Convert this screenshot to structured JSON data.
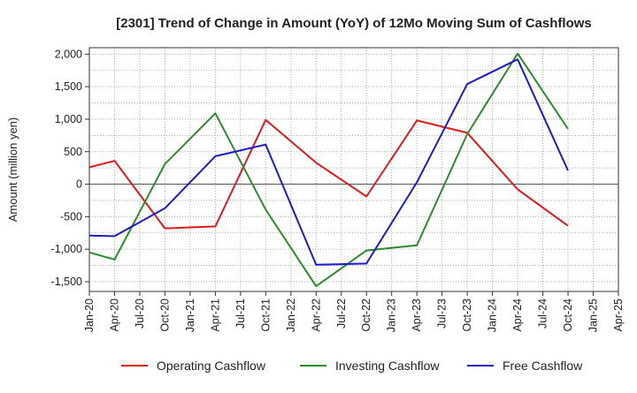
{
  "chart_data": {
    "type": "line",
    "title": "[2301]  Trend of Change in Amount (YoY) of 12Mo Moving Sum of Cashflows",
    "xlabel": "",
    "ylabel": "Amount (million yen)",
    "ylim": [
      -1650,
      2100
    ],
    "yticks": [
      2000,
      1500,
      1000,
      500,
      0,
      -500,
      -1000,
      -1500
    ],
    "ytick_labels": [
      "2,000",
      "1,500",
      "1,000",
      "500",
      "0",
      "-500",
      "-1,000",
      "-1,500"
    ],
    "categories": [
      "Jan-20",
      "Apr-20",
      "Jul-20",
      "Oct-20",
      "Jan-21",
      "Apr-21",
      "Jul-21",
      "Oct-21",
      "Jan-22",
      "Apr-22",
      "Jul-22",
      "Oct-22",
      "Jan-23",
      "Apr-23",
      "Jul-23",
      "Oct-23",
      "Jan-24",
      "Apr-24",
      "Jul-24",
      "Oct-24",
      "Jan-25",
      "Apr-25"
    ],
    "legend_position": "bottom",
    "grid": true,
    "series": [
      {
        "name": "Operating Cashflow",
        "color": "#e01b1b",
        "values": [
          260,
          360,
          null,
          -680,
          null,
          -650,
          null,
          990,
          null,
          330,
          null,
          -190,
          null,
          980,
          null,
          790,
          null,
          -80,
          null,
          -640,
          null,
          null
        ]
      },
      {
        "name": "Investing Cashflow",
        "color": "#2e8b2e",
        "values": [
          -1050,
          -1160,
          null,
          310,
          null,
          1090,
          null,
          -390,
          null,
          -1570,
          null,
          -1020,
          null,
          -940,
          null,
          770,
          null,
          2010,
          null,
          850,
          null,
          null
        ]
      },
      {
        "name": "Free Cashflow",
        "color": "#1c1ccc",
        "values": [
          -790,
          -800,
          null,
          -370,
          null,
          430,
          null,
          610,
          null,
          -1240,
          null,
          -1220,
          null,
          30,
          null,
          1540,
          null,
          1920,
          null,
          210,
          null,
          null
        ]
      }
    ]
  }
}
